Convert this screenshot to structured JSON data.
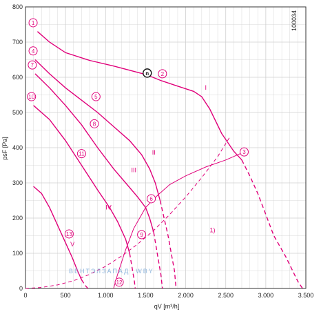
{
  "colors": {
    "curve": "#e0007a",
    "grid": "#cfcfcf",
    "axis": "#333333",
    "watermark": "#8cb4dc"
  },
  "doc_id": "100034",
  "watermark": "ВЕНТЭЛЗАПАД    .WBY",
  "chart_data": {
    "type": "line",
    "title": "",
    "xlabel": "qV [m³/h]",
    "ylabel": "psF [Pa]",
    "xlim": [
      0,
      3500
    ],
    "ylim": [
      0,
      800
    ],
    "grid": true,
    "x_ticks": [
      {
        "v": 0,
        "label": "0"
      },
      {
        "v": 500,
        "label": "500"
      },
      {
        "v": 1000,
        "label": "1.000"
      },
      {
        "v": 1500,
        "label": "1.500"
      },
      {
        "v": 2000,
        "label": "2.000"
      },
      {
        "v": 2500,
        "label": "2.500"
      },
      {
        "v": 3000,
        "label": "3.000"
      },
      {
        "v": 3500,
        "label": "3.500"
      }
    ],
    "y_ticks": [
      {
        "v": 0,
        "label": "0"
      },
      {
        "v": 100,
        "label": "100"
      },
      {
        "v": 200,
        "label": "200"
      },
      {
        "v": 300,
        "label": "300"
      },
      {
        "v": 400,
        "label": "400"
      },
      {
        "v": 500,
        "label": "500"
      },
      {
        "v": 600,
        "label": "600"
      },
      {
        "v": 700,
        "label": "700"
      },
      {
        "v": 800,
        "label": "800"
      }
    ],
    "fan_curves": [
      {
        "label": "I",
        "label_at": [
          2240,
          565
        ],
        "points": [
          [
            150,
            730
          ],
          [
            300,
            700
          ],
          [
            500,
            670
          ],
          [
            800,
            648
          ],
          [
            1100,
            632
          ],
          [
            1300,
            620
          ],
          [
            1500,
            608
          ],
          [
            1700,
            590
          ],
          [
            1900,
            575
          ],
          [
            2100,
            560
          ],
          [
            2200,
            545
          ],
          [
            2300,
            510
          ],
          [
            2450,
            440
          ],
          [
            2600,
            390
          ],
          [
            2700,
            365
          ]
        ],
        "dashed_points": [
          [
            2700,
            365
          ],
          [
            2800,
            320
          ],
          [
            2900,
            270
          ],
          [
            3000,
            210
          ],
          [
            3100,
            150
          ],
          [
            3250,
            90
          ],
          [
            3400,
            20
          ],
          [
            3460,
            0
          ]
        ]
      },
      {
        "label": "II",
        "label_at": [
          1580,
          380
        ],
        "points": [
          [
            120,
            650
          ],
          [
            300,
            610
          ],
          [
            500,
            570
          ],
          [
            700,
            535
          ],
          [
            900,
            500
          ],
          [
            1100,
            460
          ],
          [
            1300,
            420
          ],
          [
            1450,
            380
          ],
          [
            1550,
            340
          ],
          [
            1620,
            300
          ],
          [
            1680,
            250
          ]
        ],
        "dashed_points": [
          [
            1680,
            250
          ],
          [
            1730,
            200
          ],
          [
            1780,
            150
          ],
          [
            1820,
            100
          ],
          [
            1860,
            50
          ],
          [
            1880,
            0
          ]
        ]
      },
      {
        "label": "III",
        "label_at": [
          1320,
          330
        ],
        "points": [
          [
            120,
            610
          ],
          [
            300,
            570
          ],
          [
            500,
            520
          ],
          [
            700,
            465
          ],
          [
            900,
            400
          ],
          [
            1100,
            340
          ],
          [
            1250,
            300
          ],
          [
            1400,
            260
          ],
          [
            1500,
            230
          ],
          [
            1550,
            200
          ],
          [
            1600,
            160
          ]
        ],
        "dashed_points": [
          [
            1600,
            160
          ],
          [
            1630,
            120
          ],
          [
            1660,
            80
          ],
          [
            1690,
            40
          ],
          [
            1710,
            0
          ]
        ]
      },
      {
        "label": "IV",
        "label_at": [
          1000,
          225
        ],
        "points": [
          [
            100,
            520
          ],
          [
            300,
            480
          ],
          [
            500,
            420
          ],
          [
            700,
            350
          ],
          [
            900,
            280
          ],
          [
            1050,
            230
          ],
          [
            1150,
            190
          ],
          [
            1250,
            140
          ],
          [
            1300,
            100
          ]
        ],
        "dashed_points": [
          [
            1300,
            100
          ],
          [
            1330,
            60
          ],
          [
            1360,
            20
          ],
          [
            1370,
            0
          ]
        ]
      },
      {
        "label": "V",
        "label_at": [
          560,
          120
        ],
        "points": [
          [
            100,
            290
          ],
          [
            200,
            270
          ],
          [
            300,
            230
          ],
          [
            400,
            180
          ],
          [
            500,
            130
          ],
          [
            580,
            90
          ],
          [
            650,
            50
          ],
          [
            700,
            25
          ]
        ],
        "dashed_points": [
          [
            700,
            25
          ],
          [
            740,
            10
          ],
          [
            780,
            0
          ]
        ]
      }
    ],
    "system_curves": [
      {
        "label": "1)",
        "label_at": [
          2300,
          160
        ],
        "points": [
          [
            1100,
            0
          ],
          [
            1150,
            40
          ],
          [
            1250,
            110
          ],
          [
            1350,
            170
          ],
          [
            1500,
            230
          ],
          [
            1650,
            265
          ],
          [
            1800,
            295
          ],
          [
            2000,
            320
          ],
          [
            2250,
            345
          ],
          [
            2500,
            365
          ],
          [
            2700,
            385
          ]
        ],
        "dashed": false
      },
      {
        "label": "",
        "points": [
          [
            0,
            0
          ],
          [
            200,
            3
          ],
          [
            400,
            10
          ],
          [
            600,
            22
          ],
          [
            800,
            40
          ],
          [
            1000,
            63
          ],
          [
            1200,
            92
          ],
          [
            1400,
            126
          ],
          [
            1600,
            165
          ],
          [
            1800,
            210
          ],
          [
            2000,
            260
          ],
          [
            2200,
            315
          ],
          [
            2400,
            375
          ],
          [
            2550,
            430
          ]
        ],
        "dashed": true
      }
    ],
    "operating_points": [
      {
        "id": "1",
        "x": 95,
        "y": 755
      },
      {
        "id": "2",
        "x": 1710,
        "y": 610
      },
      {
        "id": "3",
        "x": 2730,
        "y": 388
      },
      {
        "id": "4",
        "x": 95,
        "y": 675
      },
      {
        "id": "5",
        "x": 880,
        "y": 545
      },
      {
        "id": "6",
        "x": 1570,
        "y": 255
      },
      {
        "id": "7",
        "x": 85,
        "y": 635
      },
      {
        "id": "8",
        "x": 860,
        "y": 468
      },
      {
        "id": "9",
        "x": 1450,
        "y": 153
      },
      {
        "id": "10",
        "x": 75,
        "y": 545
      },
      {
        "id": "11",
        "x": 700,
        "y": 383
      },
      {
        "id": "12",
        "x": 1170,
        "y": 18
      },
      {
        "id": "13",
        "x": 545,
        "y": 155
      }
    ],
    "special_point": {
      "id": "n",
      "x": 1520,
      "y": 612
    }
  }
}
